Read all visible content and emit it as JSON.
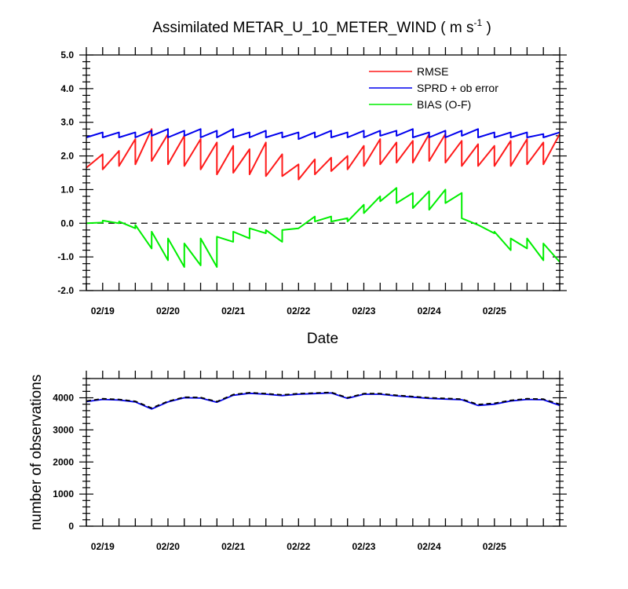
{
  "chart_data": [
    {
      "type": "line",
      "title": "Assimilated METAR_U_10_METER_WIND ( m s",
      "title_superscript": "-1",
      "title_close": " )",
      "xlabel": "Date",
      "ylabel": "",
      "ylim": [
        -2.0,
        5.0
      ],
      "yticks": [
        -2.0,
        -1.0,
        0.0,
        1.0,
        2.0,
        3.0,
        4.0,
        5.0
      ],
      "yticklabels": [
        "-2.0",
        "-1.0",
        "0.0",
        "1.0",
        "2.0",
        "3.0",
        "4.0",
        "5.0"
      ],
      "xlim": [
        0,
        7.25
      ],
      "xticks": [
        0.25,
        1.25,
        2.25,
        3.25,
        4.25,
        5.25,
        6.25
      ],
      "xticklabels": [
        "02/19",
        "02/20",
        "02/21",
        "02/22",
        "02/23",
        "02/24",
        "02/25"
      ],
      "reference_line": {
        "y": 0.0,
        "style": "dashed",
        "color": "#000000"
      },
      "legend_position": "top-right",
      "series": [
        {
          "name": "RMSE",
          "color": "#ff1a1a",
          "x": [
            0,
            0.25,
            0.25,
            0.5,
            0.5,
            0.75,
            0.75,
            1.0,
            1.0,
            1.25,
            1.25,
            1.5,
            1.5,
            1.75,
            1.75,
            2.0,
            2.0,
            2.25,
            2.25,
            2.5,
            2.5,
            2.75,
            2.75,
            3.0,
            3.0,
            3.25,
            3.25,
            3.5,
            3.5,
            3.75,
            3.75,
            4.0,
            4.0,
            4.25,
            4.25,
            4.5,
            4.5,
            4.75,
            4.75,
            5.0,
            5.0,
            5.25,
            5.25,
            5.5,
            5.5,
            5.75,
            5.75,
            6.0,
            6.0,
            6.25,
            6.25,
            6.5,
            6.5,
            6.75,
            6.75,
            7.0,
            7.0,
            7.25
          ],
          "y": [
            1.65,
            2.05,
            1.6,
            2.15,
            1.7,
            2.5,
            1.75,
            2.8,
            1.85,
            2.65,
            1.75,
            2.6,
            1.7,
            2.5,
            1.6,
            2.4,
            1.45,
            2.3,
            1.5,
            2.2,
            1.45,
            2.4,
            1.4,
            2.05,
            1.4,
            1.75,
            1.3,
            1.9,
            1.45,
            1.95,
            1.55,
            2.0,
            1.6,
            2.3,
            1.7,
            2.5,
            1.75,
            2.4,
            1.8,
            2.45,
            1.8,
            2.65,
            1.85,
            2.65,
            1.8,
            2.45,
            1.7,
            2.35,
            1.7,
            2.3,
            1.7,
            2.45,
            1.7,
            2.5,
            1.75,
            2.4,
            1.75,
            2.65
          ]
        },
        {
          "name": "SPRD + ob error",
          "color": "#0000ee",
          "x": [
            0,
            0.25,
            0.25,
            0.5,
            0.5,
            0.75,
            0.75,
            1.0,
            1.0,
            1.25,
            1.25,
            1.5,
            1.5,
            1.75,
            1.75,
            2.0,
            2.0,
            2.25,
            2.25,
            2.5,
            2.5,
            2.75,
            2.75,
            3.0,
            3.0,
            3.25,
            3.25,
            3.5,
            3.5,
            3.75,
            3.75,
            4.0,
            4.0,
            4.25,
            4.25,
            4.5,
            4.5,
            4.75,
            4.75,
            5.0,
            5.0,
            5.25,
            5.25,
            5.5,
            5.5,
            5.75,
            5.75,
            6.0,
            6.0,
            6.25,
            6.25,
            6.5,
            6.5,
            6.75,
            6.75,
            7.0,
            7.0,
            7.25
          ],
          "y": [
            2.55,
            2.7,
            2.55,
            2.7,
            2.55,
            2.7,
            2.55,
            2.75,
            2.6,
            2.8,
            2.55,
            2.75,
            2.6,
            2.8,
            2.55,
            2.75,
            2.55,
            2.8,
            2.55,
            2.7,
            2.55,
            2.75,
            2.55,
            2.7,
            2.55,
            2.7,
            2.5,
            2.7,
            2.55,
            2.75,
            2.55,
            2.7,
            2.55,
            2.75,
            2.55,
            2.75,
            2.6,
            2.75,
            2.6,
            2.8,
            2.55,
            2.7,
            2.55,
            2.75,
            2.55,
            2.75,
            2.6,
            2.8,
            2.55,
            2.7,
            2.55,
            2.7,
            2.55,
            2.7,
            2.55,
            2.65,
            2.55,
            2.7
          ]
        },
        {
          "name": "BIAS (O-F)",
          "color": "#00ee00",
          "x": [
            0,
            0.25,
            0.25,
            0.5,
            0.5,
            0.75,
            0.75,
            1.0,
            1.0,
            1.25,
            1.25,
            1.5,
            1.5,
            1.75,
            1.75,
            2.0,
            2.0,
            2.25,
            2.25,
            2.5,
            2.5,
            2.75,
            2.75,
            3.0,
            3.0,
            3.25,
            3.25,
            3.5,
            3.5,
            3.75,
            3.75,
            4.0,
            4.0,
            4.25,
            4.25,
            4.5,
            4.5,
            4.75,
            4.75,
            5.0,
            5.0,
            5.25,
            5.25,
            5.5,
            5.5,
            5.75,
            5.75,
            6.0,
            6.0,
            6.25,
            6.25,
            6.5,
            6.5,
            6.75,
            6.75,
            7.0,
            7.0,
            7.25
          ],
          "y": [
            0.0,
            0.02,
            0.08,
            0.0,
            0.05,
            -0.15,
            -0.05,
            -0.75,
            -0.25,
            -1.1,
            -0.45,
            -1.3,
            -0.6,
            -1.25,
            -0.45,
            -1.3,
            -0.4,
            -0.55,
            -0.25,
            -0.45,
            -0.15,
            -0.3,
            -0.2,
            -0.55,
            -0.2,
            -0.15,
            -0.15,
            0.2,
            0.05,
            0.2,
            0.05,
            0.15,
            0.05,
            0.55,
            0.3,
            0.8,
            0.65,
            1.05,
            0.6,
            0.9,
            0.45,
            0.95,
            0.4,
            1.0,
            0.6,
            0.9,
            0.15,
            -0.05,
            -0.05,
            -0.3,
            -0.25,
            -0.8,
            -0.45,
            -0.75,
            -0.45,
            -1.1,
            -0.6,
            -1.15
          ]
        }
      ]
    },
    {
      "type": "line",
      "title": "",
      "xlabel": "",
      "ylabel": "number of observations",
      "ylim": [
        0,
        4600
      ],
      "yticks": [
        0,
        1000,
        2000,
        3000,
        4000
      ],
      "yticklabels": [
        "0",
        "1000",
        "2000",
        "3000",
        "4000"
      ],
      "xlim": [
        0,
        7.25
      ],
      "xticks": [
        0.25,
        1.25,
        2.25,
        3.25,
        4.25,
        5.25,
        6.25
      ],
      "xticklabels": [
        "02/19",
        "02/20",
        "02/21",
        "02/22",
        "02/23",
        "02/24",
        "02/25"
      ],
      "series": [
        {
          "name": "",
          "color": "#0000ee",
          "style": "solid",
          "x": [
            0,
            0.25,
            0.5,
            0.75,
            1.0,
            1.25,
            1.5,
            1.75,
            2.0,
            2.25,
            2.5,
            2.75,
            3.0,
            3.25,
            3.5,
            3.75,
            4.0,
            4.25,
            4.5,
            4.75,
            5.0,
            5.25,
            5.5,
            5.75,
            6.0,
            6.25,
            6.5,
            6.75,
            7.0,
            7.25
          ],
          "y": [
            3880,
            3950,
            3930,
            3870,
            3650,
            3870,
            4000,
            3990,
            3860,
            4080,
            4140,
            4110,
            4070,
            4110,
            4130,
            4150,
            3980,
            4110,
            4110,
            4060,
            4020,
            3980,
            3960,
            3940,
            3760,
            3800,
            3900,
            3950,
            3940,
            3760
          ]
        },
        {
          "name": "",
          "color": "#000000",
          "style": "dashed",
          "x": [
            0,
            0.25,
            0.5,
            0.75,
            1.0,
            1.25,
            1.5,
            1.75,
            2.0,
            2.25,
            2.5,
            2.75,
            3.0,
            3.25,
            3.5,
            3.75,
            4.0,
            4.25,
            4.5,
            4.75,
            5.0,
            5.25,
            5.5,
            5.75,
            6.0,
            6.25,
            6.5,
            6.75,
            7.0,
            7.25
          ],
          "y": [
            3900,
            3970,
            3950,
            3890,
            3680,
            3890,
            4020,
            4010,
            3880,
            4100,
            4160,
            4130,
            4090,
            4130,
            4150,
            4170,
            4000,
            4130,
            4130,
            4080,
            4040,
            4000,
            3980,
            3960,
            3790,
            3830,
            3920,
            3970,
            3960,
            3800
          ]
        }
      ]
    }
  ]
}
